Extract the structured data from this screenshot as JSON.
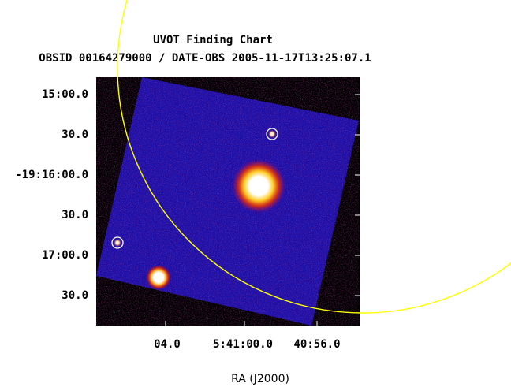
{
  "title": "UVOT Finding Chart",
  "subtitle": "OBSID 00164279000 / DATE-OBS 2005-11-17T13:25:07.1",
  "y_ticks": [
    "15:00.0",
    "30.0",
    "-19:16:00.0",
    "30.0",
    "17:00.0",
    "30.0"
  ],
  "x_ticks": [
    "04.0",
    "5:41:00.0",
    "40:56.0"
  ],
  "x_axis_label": "RA (J2000)",
  "colors": {
    "frame_background": "#000000",
    "image_base": "#1a10a8",
    "error_circle": "#ffff00",
    "source_markers": "#ffffff"
  }
}
